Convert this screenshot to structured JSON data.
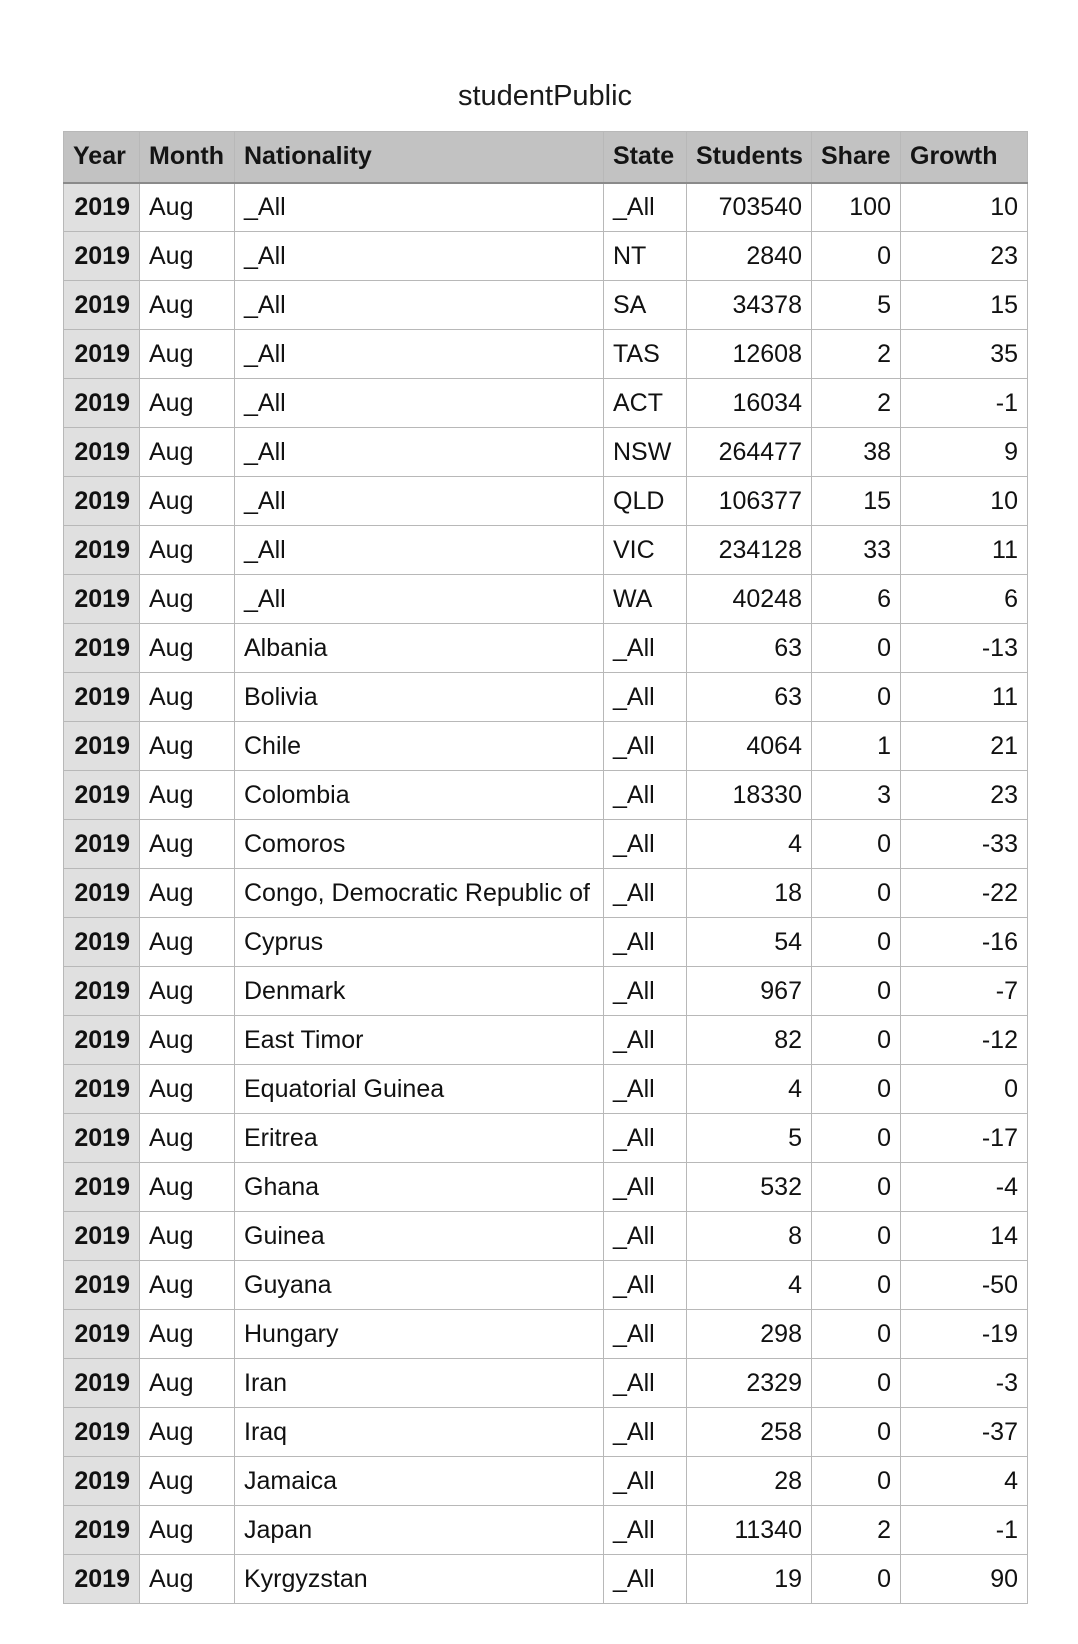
{
  "title": "studentPublic",
  "columns": [
    "Year",
    "Month",
    "Nationality",
    "State",
    "Students",
    "Share",
    "Growth"
  ],
  "rows": [
    [
      "2019",
      "Aug",
      "_All",
      "_All",
      "703540",
      "100",
      "10"
    ],
    [
      "2019",
      "Aug",
      "_All",
      "NT",
      "2840",
      "0",
      "23"
    ],
    [
      "2019",
      "Aug",
      "_All",
      "SA",
      "34378",
      "5",
      "15"
    ],
    [
      "2019",
      "Aug",
      "_All",
      "TAS",
      "12608",
      "2",
      "35"
    ],
    [
      "2019",
      "Aug",
      "_All",
      "ACT",
      "16034",
      "2",
      "-1"
    ],
    [
      "2019",
      "Aug",
      "_All",
      "NSW",
      "264477",
      "38",
      "9"
    ],
    [
      "2019",
      "Aug",
      "_All",
      "QLD",
      "106377",
      "15",
      "10"
    ],
    [
      "2019",
      "Aug",
      "_All",
      "VIC",
      "234128",
      "33",
      "11"
    ],
    [
      "2019",
      "Aug",
      "_All",
      "WA",
      "40248",
      "6",
      "6"
    ],
    [
      "2019",
      "Aug",
      "Albania",
      "_All",
      "63",
      "0",
      "-13"
    ],
    [
      "2019",
      "Aug",
      "Bolivia",
      "_All",
      "63",
      "0",
      "11"
    ],
    [
      "2019",
      "Aug",
      "Chile",
      "_All",
      "4064",
      "1",
      "21"
    ],
    [
      "2019",
      "Aug",
      "Colombia",
      "_All",
      "18330",
      "3",
      "23"
    ],
    [
      "2019",
      "Aug",
      "Comoros",
      "_All",
      "4",
      "0",
      "-33"
    ],
    [
      "2019",
      "Aug",
      "Congo, Democratic Republic of",
      "_All",
      "18",
      "0",
      "-22"
    ],
    [
      "2019",
      "Aug",
      "Cyprus",
      "_All",
      "54",
      "0",
      "-16"
    ],
    [
      "2019",
      "Aug",
      "Denmark",
      "_All",
      "967",
      "0",
      "-7"
    ],
    [
      "2019",
      "Aug",
      "East Timor",
      "_All",
      "82",
      "0",
      "-12"
    ],
    [
      "2019",
      "Aug",
      "Equatorial Guinea",
      "_All",
      "4",
      "0",
      "0"
    ],
    [
      "2019",
      "Aug",
      "Eritrea",
      "_All",
      "5",
      "0",
      "-17"
    ],
    [
      "2019",
      "Aug",
      "Ghana",
      "_All",
      "532",
      "0",
      "-4"
    ],
    [
      "2019",
      "Aug",
      "Guinea",
      "_All",
      "8",
      "0",
      "14"
    ],
    [
      "2019",
      "Aug",
      "Guyana",
      "_All",
      "4",
      "0",
      "-50"
    ],
    [
      "2019",
      "Aug",
      "Hungary",
      "_All",
      "298",
      "0",
      "-19"
    ],
    [
      "2019",
      "Aug",
      "Iran",
      "_All",
      "2329",
      "0",
      "-3"
    ],
    [
      "2019",
      "Aug",
      "Iraq",
      "_All",
      "258",
      "0",
      "-37"
    ],
    [
      "2019",
      "Aug",
      "Jamaica",
      "_All",
      "28",
      "0",
      "4"
    ],
    [
      "2019",
      "Aug",
      "Japan",
      "_All",
      "11340",
      "2",
      "-1"
    ],
    [
      "2019",
      "Aug",
      "Kyrgyzstan",
      "_All",
      "19",
      "0",
      "90"
    ]
  ]
}
